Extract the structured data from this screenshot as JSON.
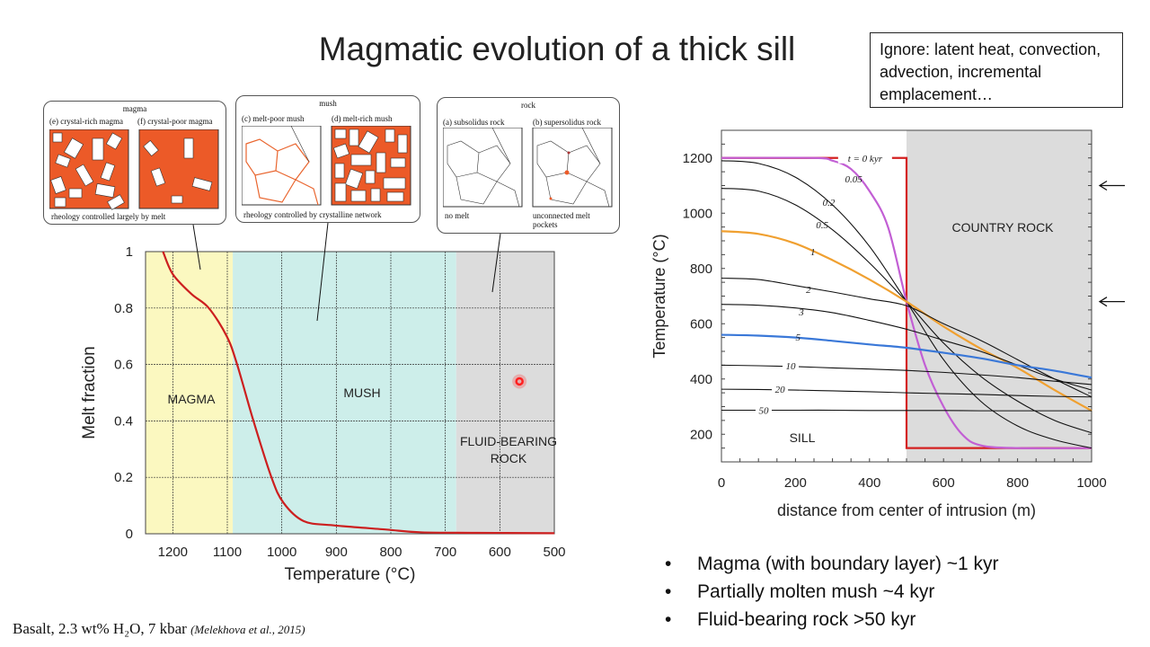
{
  "title": "Magmatic evolution of a thick sill",
  "note": "Ignore: latent heat, convection, advection, incremental emplacement…",
  "panels": [
    {
      "title": "magma",
      "sub": [
        "(e) crystal-rich magma",
        "(f) crystal-poor magma"
      ],
      "caption": "rheology controlled largely by melt"
    },
    {
      "title": "mush",
      "sub": [
        "(c) melt-poor mush",
        "(d) melt-rich mush"
      ],
      "caption": "rheology controlled by crystalline network"
    },
    {
      "title": "rock",
      "sub": [
        "(a) subsolidus rock",
        "(b) supersolidus rock"
      ],
      "caption_a": "no melt",
      "caption_b": "unconnected melt pockets"
    }
  ],
  "footer": {
    "text": "Basalt, 2.3 wt% H₂O, 7 kbar",
    "citation": "(Melekhova et al., 2015)"
  },
  "bullets": [
    "Magma (with boundary layer) ~1 kyr",
    "Partially molten mush ~4 kyr",
    "Fluid-bearing rock >50 kyr"
  ],
  "chart_data": [
    {
      "type": "line",
      "xlabel": "Temperature (°C)",
      "ylabel": "Melt fraction",
      "xlim": [
        1250,
        500
      ],
      "ylim": [
        0,
        1
      ],
      "x_reversed": true,
      "grid": true,
      "xticks": [
        1200,
        1100,
        1000,
        900,
        800,
        700,
        600,
        500
      ],
      "yticks": [
        0,
        0.2,
        0.4,
        0.6,
        0.8,
        1
      ],
      "ytick_labels": [
        "0",
        "0.2",
        "0.4",
        "0.6",
        "0.8",
        "1"
      ],
      "regions": [
        {
          "label": "MAGMA",
          "from": 1250,
          "to": 1090,
          "color": "#fbf8c0"
        },
        {
          "label": "MUSH",
          "from": 1090,
          "to": 680,
          "color": "#cdeeea"
        },
        {
          "label": "FLUID-BEARING ROCK",
          "from": 680,
          "to": 500,
          "color": "#dcdcdc"
        }
      ],
      "series": [
        {
          "color": "#cc1f1f",
          "x": [
            1218,
            1200,
            1166,
            1134,
            1101,
            1082,
            1052,
            1019,
            997,
            960,
            906,
            808,
            743,
            600,
            500
          ],
          "y": [
            1.0,
            0.92,
            0.85,
            0.8,
            0.7,
            0.6,
            0.4,
            0.2,
            0.11,
            0.045,
            0.03,
            0.015,
            0.005,
            0.003,
            0.002
          ]
        }
      ],
      "marker": {
        "x": 564,
        "y": 0.54,
        "color": "#ff2020"
      }
    },
    {
      "type": "line",
      "xlabel": "distance from center of intrusion (m)",
      "ylabel": "Temperature (°C)",
      "xlim": [
        0,
        1000
      ],
      "ylim": [
        100,
        1300
      ],
      "grid": false,
      "xticks": [
        0,
        200,
        400,
        600,
        800,
        1000
      ],
      "yticks": [
        200,
        400,
        600,
        800,
        1000,
        1200
      ],
      "regions": [
        {
          "label": "SILL",
          "from": 0,
          "to": 500,
          "color": "#ffffff"
        },
        {
          "label": "COUNTRY ROCK",
          "from": 500,
          "to": 1000,
          "color": "#dcdcdc"
        }
      ],
      "arrows_at_temperature": [
        1100,
        680
      ],
      "series": [
        {
          "name": "t = 0 kyr",
          "color": "#d42020",
          "x": [
            0,
            500,
            500,
            1000
          ],
          "y": [
            1200,
            1200,
            150,
            150
          ],
          "label_at": [
            388,
            1200
          ]
        },
        {
          "name": "0.05",
          "color": "#c25fd4",
          "x": [
            0,
            250,
            300,
            350,
            400,
            450,
            500,
            550,
            600,
            650,
            700,
            800,
            1000
          ],
          "y": [
            1200,
            1200,
            1190,
            1160,
            1080,
            950,
            680,
            450,
            300,
            200,
            160,
            150,
            150
          ],
          "label_at": [
            357,
            1125
          ]
        },
        {
          "name": "0.2",
          "color": "#111111",
          "x": [
            0,
            100,
            200,
            300,
            400,
            500,
            600,
            700,
            800,
            900,
            1000
          ],
          "y": [
            1190,
            1180,
            1130,
            1030,
            880,
            680,
            470,
            320,
            230,
            180,
            150
          ],
          "label_at": [
            290,
            1040
          ]
        },
        {
          "name": "0.5",
          "color": "#111111",
          "x": [
            0,
            100,
            200,
            300,
            400,
            500,
            600,
            700,
            800,
            900,
            1000
          ],
          "y": [
            1090,
            1080,
            1030,
            940,
            820,
            680,
            530,
            410,
            320,
            250,
            205
          ],
          "label_at": [
            272,
            959
          ]
        },
        {
          "name": "1",
          "color": "#f0a030",
          "x": [
            0,
            100,
            200,
            300,
            400,
            500,
            600,
            700,
            800,
            900,
            1000
          ],
          "y": [
            935,
            925,
            890,
            830,
            760,
            680,
            590,
            510,
            440,
            360,
            285
          ],
          "label_at": [
            247,
            861
          ]
        },
        {
          "name": "2",
          "color": "#111111",
          "x": [
            0,
            100,
            200,
            300,
            400,
            500,
            600,
            700,
            800,
            900,
            1000
          ],
          "y": [
            765,
            760,
            738,
            715,
            690,
            665,
            600,
            540,
            470,
            400,
            335
          ],
          "label_at": [
            235,
            724
          ]
        },
        {
          "name": "3",
          "color": "#111111",
          "x": [
            0,
            100,
            200,
            300,
            400,
            500,
            600,
            700,
            800,
            900,
            1000
          ],
          "y": [
            670,
            667,
            657,
            640,
            612,
            580,
            540,
            500,
            450,
            400,
            360
          ],
          "label_at": [
            216,
            643
          ]
        },
        {
          "name": "5",
          "color": "#3a78d8",
          "x": [
            0,
            100,
            200,
            300,
            400,
            500,
            600,
            700,
            800,
            900,
            1000
          ],
          "y": [
            560,
            557,
            550,
            538,
            525,
            513,
            495,
            475,
            450,
            430,
            405
          ],
          "label_at": [
            207,
            552
          ]
        },
        {
          "name": "10",
          "color": "#111111",
          "x": [
            0,
            100,
            200,
            300,
            400,
            500,
            600,
            700,
            800,
            900,
            1000
          ],
          "y": [
            450,
            448,
            445,
            440,
            436,
            431,
            424,
            415,
            405,
            392,
            380
          ],
          "label_at": [
            187,
            448
          ]
        },
        {
          "name": "20",
          "color": "#111111",
          "x": [
            0,
            100,
            200,
            300,
            400,
            500,
            600,
            700,
            800,
            900,
            1000
          ],
          "y": [
            363,
            362,
            360,
            357,
            354,
            350,
            347,
            344,
            340,
            337,
            335
          ],
          "label_at": [
            158,
            363
          ]
        },
        {
          "name": "50",
          "color": "#111111",
          "x": [
            0,
            100,
            200,
            300,
            400,
            500,
            600,
            700,
            800,
            900,
            1000
          ],
          "y": [
            287,
            287,
            287,
            287,
            286,
            286,
            286,
            285,
            285,
            285,
            285
          ],
          "label_at": [
            114,
            287
          ]
        }
      ]
    }
  ]
}
